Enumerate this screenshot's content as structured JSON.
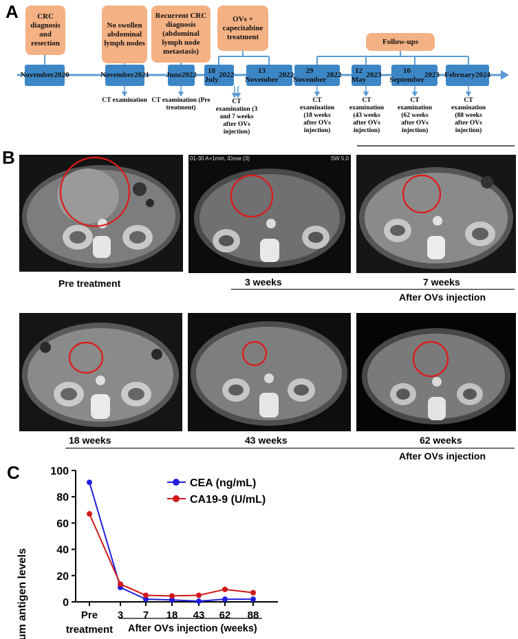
{
  "panels": {
    "a": "A",
    "b": "B",
    "c": "C"
  },
  "timeline": {
    "events": [
      {
        "text": "CRC diagnosis and resection"
      },
      {
        "text": "No swollen abdominal lymph nodes"
      },
      {
        "text": "Recurrent CRC diagnosis (abdominal lymph node metastasis)"
      },
      {
        "text": "OVs + capecitabine treatment"
      },
      {
        "text": "Follow-ups"
      }
    ],
    "dates": [
      {
        "line1": "November",
        "line2": "2020"
      },
      {
        "line1": "November",
        "line2": "2021"
      },
      {
        "line1": "June",
        "line2": "2022"
      },
      {
        "line1": "18 July",
        "line2": "2022"
      },
      {
        "line1": "13 November",
        "line2": "2022"
      },
      {
        "line1": "29 November",
        "line2": "2022"
      },
      {
        "line1": "12 May",
        "line2": "2023"
      },
      {
        "line1": "16 September",
        "line2": "2023"
      },
      {
        "line1": "February",
        "line2": "2024"
      }
    ],
    "ct_labels": [
      "CT examination",
      "CT examination (Pre treatment)",
      "CT examination (3 and 7 weeks after OVs injection)",
      "CT examination (18 weeks after OVs injection)",
      "CT examination (43 weeks after OVs injection)",
      "CT examination (62 weeks after OVs injection)",
      "CT examination (88 weeks after OVs injection)"
    ],
    "colors": {
      "event": "#f4b183",
      "date": "#3d86c6",
      "line": "#5b9bd5"
    }
  },
  "scans": {
    "captions": [
      "Pre treatment",
      "3 weeks",
      "7 weeks",
      "18 weeks",
      "43 weeks",
      "62 weeks"
    ],
    "after_label_1": "After OVs injection",
    "after_label_2": "After OVs injection",
    "overlay_text": "01-30 A+1mm, iDose (3)",
    "overlay_text2": "SW 5.0"
  },
  "chart_data": {
    "type": "line",
    "ylabel": "Serum antigen levels",
    "xlabel": "After OVs injection (weeks)",
    "categories": [
      "Pre treatment",
      "3",
      "7",
      "18",
      "43",
      "62",
      "88"
    ],
    "category_label_pre_line1": "Pre",
    "category_label_pre_line2": "treatment",
    "ylim": [
      0,
      100
    ],
    "yticks": [
      "0",
      "20",
      "40",
      "60",
      "80",
      "100"
    ],
    "legend_position": "top-right",
    "series": [
      {
        "name": "CEA (ng/mL)",
        "color": "#1f1fe0",
        "values": [
          91,
          11,
          2,
          1.5,
          0.5,
          2,
          2
        ]
      },
      {
        "name": "CA19-9 (U/mL)",
        "color": "#d01818",
        "values": [
          67,
          13.5,
          5,
          4.5,
          5,
          9.5,
          7
        ]
      }
    ]
  }
}
